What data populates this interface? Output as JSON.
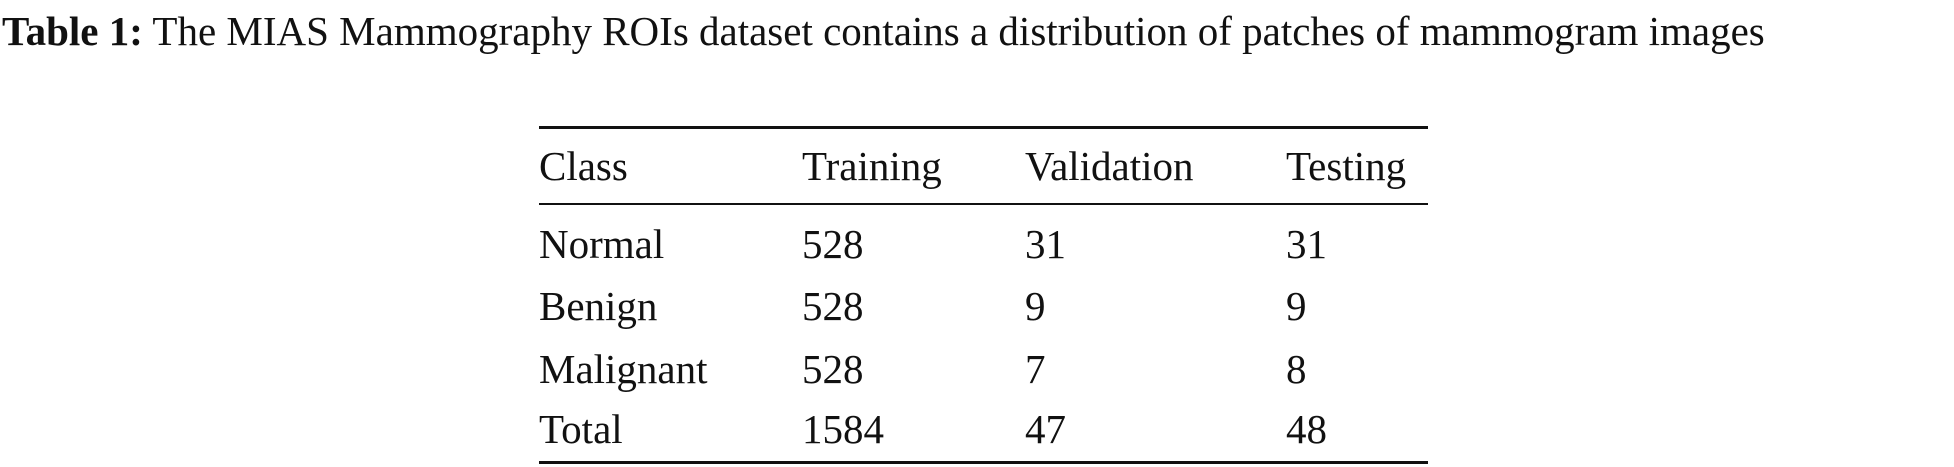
{
  "caption": {
    "label": "Table 1:",
    "text": "The MIAS Mammography ROIs dataset contains a distribution of patches of mammogram images"
  },
  "table": {
    "header": [
      "Class",
      "Training",
      "Validation",
      "Testing"
    ],
    "rows": [
      [
        "Normal",
        528,
        31,
        31
      ],
      [
        "Benign",
        528,
        9,
        9
      ],
      [
        "Malignant",
        528,
        7,
        8
      ],
      [
        "Total",
        1584,
        47,
        48
      ]
    ]
  }
}
